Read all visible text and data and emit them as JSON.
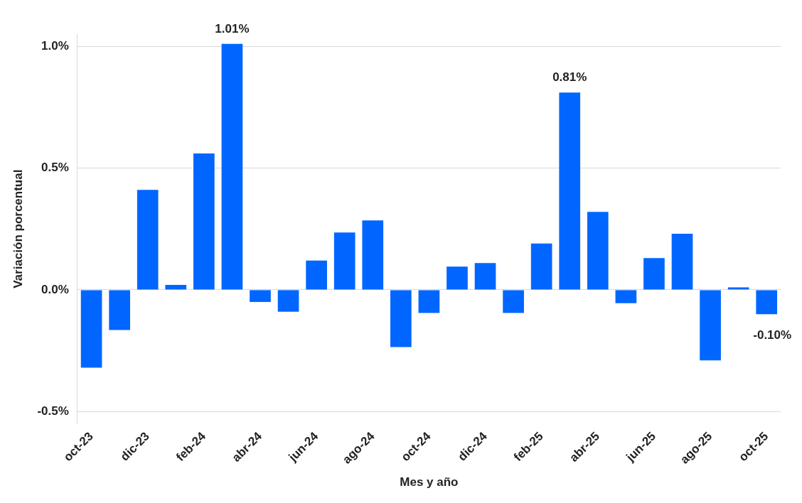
{
  "chart_data": {
    "type": "bar",
    "xlabel": "Mes y año",
    "ylabel": "Variación porcentual",
    "categories": [
      "oct-23",
      null,
      "dic-23",
      null,
      "feb-24",
      null,
      "abr-24",
      null,
      "jun-24",
      null,
      "ago-24",
      null,
      "oct-24",
      null,
      "dic-24",
      null,
      "feb-25",
      null,
      "abr-25",
      null,
      "jun-25",
      null,
      "ago-25",
      null,
      "oct-25"
    ],
    "series": [
      {
        "color": "#0066ff",
        "values": [
          -0.32,
          -0.165,
          0.41,
          0.02,
          0.56,
          1.01,
          -0.05,
          -0.09,
          0.12,
          0.235,
          0.285,
          -0.235,
          -0.095,
          0.095,
          0.11,
          -0.095,
          0.19,
          0.81,
          0.32,
          -0.055,
          0.13,
          0.23,
          -0.29,
          0.01,
          -0.1
        ],
        "value_labels": [
          null,
          null,
          null,
          null,
          null,
          "1.01%",
          null,
          null,
          null,
          null,
          null,
          null,
          null,
          null,
          null,
          null,
          null,
          "0.81%",
          null,
          null,
          null,
          null,
          null,
          null,
          "-0.10%"
        ]
      }
    ],
    "ylim": [
      -0.55,
      1.05
    ],
    "yticks": [
      {
        "value": -0.5,
        "label": "-0.5%"
      },
      {
        "value": 0,
        "label": "0.0%"
      },
      {
        "value": 0.5,
        "label": "0.5%"
      },
      {
        "value": 1,
        "label": "1.0%"
      }
    ],
    "grid": "y",
    "legend": false
  }
}
